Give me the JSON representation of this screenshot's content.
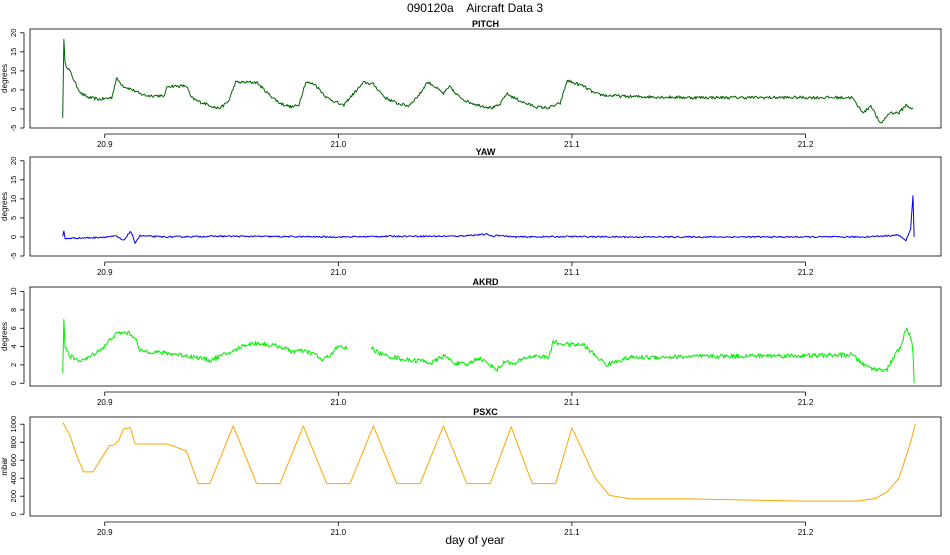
{
  "title": "090120a    Aircraft Data 3",
  "xlabel": "day of year",
  "colors": {
    "pitch": "#006400",
    "yaw": "#0000ee",
    "akrd": "#00ee00",
    "psxc": "#ffa500"
  },
  "chart_data": [
    {
      "type": "line",
      "title": "PITCH",
      "ylabel": "degrees",
      "xlim": [
        20.868,
        21.258
      ],
      "ylim": [
        -5,
        21
      ],
      "xticks": [
        20.9,
        21.0,
        21.1,
        21.2
      ],
      "xtick_labels": [
        "20.9",
        "21.0",
        "21.1",
        "21.2"
      ],
      "yticks": [
        -5,
        0,
        5,
        10,
        15,
        20
      ],
      "ytick_labels": [
        "-5",
        "0",
        "5",
        "10",
        "15",
        "20"
      ],
      "series": [
        {
          "color": "pitch",
          "noise": 0.4,
          "x": [
            20.882,
            20.8825,
            20.883,
            20.885,
            20.888,
            20.89,
            20.893,
            20.898,
            20.903,
            20.905,
            20.908,
            20.912,
            20.915,
            20.918,
            20.92,
            20.924,
            20.925,
            20.927,
            20.93,
            20.935,
            20.937,
            20.94,
            20.945,
            20.948,
            20.95,
            20.953,
            20.956,
            20.96,
            20.965,
            20.97,
            20.975,
            20.98,
            20.983,
            20.986,
            20.99,
            20.995,
            21.0,
            21.002,
            21.005,
            21.008,
            21.011,
            21.015,
            21.02,
            21.025,
            21.03,
            21.035,
            21.038,
            21.04,
            21.045,
            21.048,
            21.05,
            21.055,
            21.06,
            21.066,
            21.069,
            21.072,
            21.075,
            21.08,
            21.085,
            21.09,
            21.095,
            21.098,
            21.1,
            21.105,
            21.11,
            21.115,
            21.118,
            21.122,
            21.15,
            21.18,
            21.2,
            21.22,
            21.222,
            21.225,
            21.228,
            21.232,
            21.236,
            21.24,
            21.243,
            21.246
          ],
          "y": [
            -2,
            18,
            12,
            10,
            6,
            4,
            3,
            2.5,
            3,
            8,
            6,
            5,
            4,
            3.5,
            3.5,
            3.5,
            3,
            6,
            6,
            6,
            3,
            2,
            1,
            0.2,
            0.5,
            2,
            7,
            7,
            7,
            4,
            1.5,
            0.5,
            1,
            7,
            6.5,
            3,
            1.5,
            0.8,
            3,
            5,
            7,
            6.5,
            3,
            1.5,
            0.8,
            4,
            7,
            6.5,
            4,
            6,
            4,
            2,
            1,
            0.3,
            1,
            4,
            3,
            1.5,
            0.5,
            0.3,
            1.5,
            7.5,
            7,
            6,
            4,
            3.5,
            3.5,
            3.3,
            3,
            3,
            3,
            3,
            1,
            -1,
            1,
            -4,
            -1,
            -1,
            1,
            0
          ]
        }
      ]
    },
    {
      "type": "line",
      "title": "YAW",
      "ylabel": "degrees",
      "xlim": [
        20.868,
        21.258
      ],
      "ylim": [
        -5,
        21
      ],
      "xticks": [
        20.9,
        21.0,
        21.1,
        21.2
      ],
      "xtick_labels": [
        "20.9",
        "21.0",
        "21.1",
        "21.2"
      ],
      "yticks": [
        -5,
        0,
        5,
        10,
        15,
        20
      ],
      "ytick_labels": [
        "-5",
        "0",
        "5",
        "10",
        "15",
        "20"
      ],
      "series": [
        {
          "color": "yaw",
          "noise": 0.2,
          "x": [
            20.882,
            20.8825,
            20.883,
            20.886,
            20.895,
            20.905,
            20.908,
            20.911,
            20.913,
            20.915,
            20.925,
            20.95,
            20.975,
            21.0,
            21.025,
            21.05,
            21.064,
            21.066,
            21.068,
            21.075,
            21.1,
            21.125,
            21.15,
            21.175,
            21.2,
            21.225,
            21.24,
            21.243,
            21.245,
            21.246,
            21.2465
          ],
          "y": [
            0,
            1.5,
            -0.5,
            -0.3,
            -0.2,
            0.2,
            -1,
            1.5,
            -1.5,
            0.3,
            0,
            0.2,
            0.1,
            0,
            0.2,
            0.2,
            0.7,
            0.1,
            0.5,
            0,
            0.1,
            0,
            0,
            0,
            0,
            0,
            0.5,
            -1,
            2,
            11,
            0
          ]
        }
      ]
    },
    {
      "type": "line",
      "title": "AKRD",
      "ylabel": "degrees",
      "xlim": [
        20.868,
        21.258
      ],
      "ylim": [
        -0.3,
        10.5
      ],
      "xticks": [
        20.9,
        21.0,
        21.1,
        21.2
      ],
      "xtick_labels": [
        "20.9",
        "21.0",
        "21.1",
        "21.2"
      ],
      "yticks": [
        0,
        2,
        4,
        6,
        8,
        10
      ],
      "ytick_labels": [
        "0",
        "2",
        "4",
        "6",
        "8",
        "10"
      ],
      "series": [
        {
          "color": "akrd",
          "noise": 0.25,
          "x": [
            20.882,
            20.8825,
            20.883,
            20.885,
            20.888,
            20.892,
            20.897,
            20.9,
            20.903,
            20.906,
            20.91,
            20.913,
            20.915,
            20.918,
            20.925,
            20.93,
            20.935,
            20.94,
            20.945,
            20.95,
            20.955,
            20.96,
            20.965,
            20.97,
            20.975,
            20.98,
            20.985,
            20.99,
            20.993,
            20.996,
            21.0,
            21.004
          ],
          "y": [
            1.2,
            6.8,
            4,
            3,
            2.5,
            2.6,
            3.5,
            4,
            5,
            5.5,
            5.5,
            5,
            3.5,
            3.5,
            3.3,
            3.2,
            3.0,
            2.8,
            2.5,
            3,
            3.5,
            4.2,
            4.4,
            4.2,
            4.0,
            3.5,
            3.5,
            3.2,
            2.5,
            3.0,
            4.0,
            3.8
          ]
        },
        {
          "color": "akrd",
          "noise": 0.25,
          "x": [
            21.014,
            21.016,
            21.02,
            21.025,
            21.03,
            21.035,
            21.04,
            21.045,
            21.05,
            21.055,
            21.06,
            21.065,
            21.068,
            21.072,
            21.075,
            21.08,
            21.085,
            21.09,
            21.092,
            21.095,
            21.1,
            21.105,
            21.11,
            21.115,
            21.12,
            21.125,
            21.15,
            21.18,
            21.2,
            21.22,
            21.225,
            21.23,
            21.235,
            21.238,
            21.241,
            21.243,
            21.245,
            21.246,
            21.2465
          ],
          "y": [
            4,
            3.5,
            3.0,
            2.8,
            2.5,
            2.5,
            2.2,
            3.0,
            2.2,
            2.0,
            2.8,
            2.0,
            1.5,
            2.5,
            2.0,
            2.8,
            3.0,
            2.8,
            4.5,
            4.3,
            4.2,
            4.2,
            3,
            2,
            2.5,
            2.8,
            2.9,
            3.0,
            3.0,
            3.1,
            2.0,
            1.5,
            1.5,
            3.0,
            4.0,
            6.0,
            5.0,
            3.5,
            0
          ]
        }
      ]
    },
    {
      "type": "line",
      "title": "PSXC",
      "ylabel": "mbar",
      "xlim": [
        20.868,
        21.258
      ],
      "ylim": [
        -20,
        1080
      ],
      "xticks": [
        20.9,
        21.0,
        21.1,
        21.2
      ],
      "xtick_labels": [
        "20.9",
        "21.0",
        "21.1",
        "21.2"
      ],
      "yticks": [
        0,
        200,
        400,
        600,
        800,
        1000
      ],
      "ytick_labels": [
        "0",
        "200",
        "400",
        "600",
        "800",
        "1000"
      ],
      "series": [
        {
          "color": "psxc",
          "noise": 0,
          "x": [
            20.882,
            20.885,
            20.888,
            20.891,
            20.895,
            20.898,
            20.902,
            20.904,
            20.906,
            20.908,
            20.911,
            20.913,
            20.918,
            20.925,
            20.927,
            20.935,
            20.94,
            20.945,
            20.955,
            20.965,
            20.97,
            20.975,
            20.985,
            20.995,
            20.999,
            21.005,
            21.015,
            21.025,
            21.03,
            21.035,
            21.045,
            21.055,
            21.06,
            21.065,
            21.074,
            21.083,
            21.088,
            21.093,
            21.1,
            21.11,
            21.116,
            21.125,
            21.15,
            21.2,
            21.222,
            21.23,
            21.235,
            21.24,
            21.245,
            21.247
          ],
          "y": [
            1020,
            880,
            650,
            470,
            470,
            600,
            760,
            770,
            820,
            950,
            960,
            780,
            780,
            780,
            780,
            700,
            340,
            340,
            980,
            340,
            340,
            340,
            980,
            340,
            340,
            340,
            980,
            340,
            340,
            340,
            980,
            340,
            340,
            340,
            970,
            340,
            340,
            340,
            960,
            400,
            210,
            170,
            170,
            145,
            145,
            175,
            250,
            400,
            800,
            1000
          ]
        }
      ]
    }
  ]
}
